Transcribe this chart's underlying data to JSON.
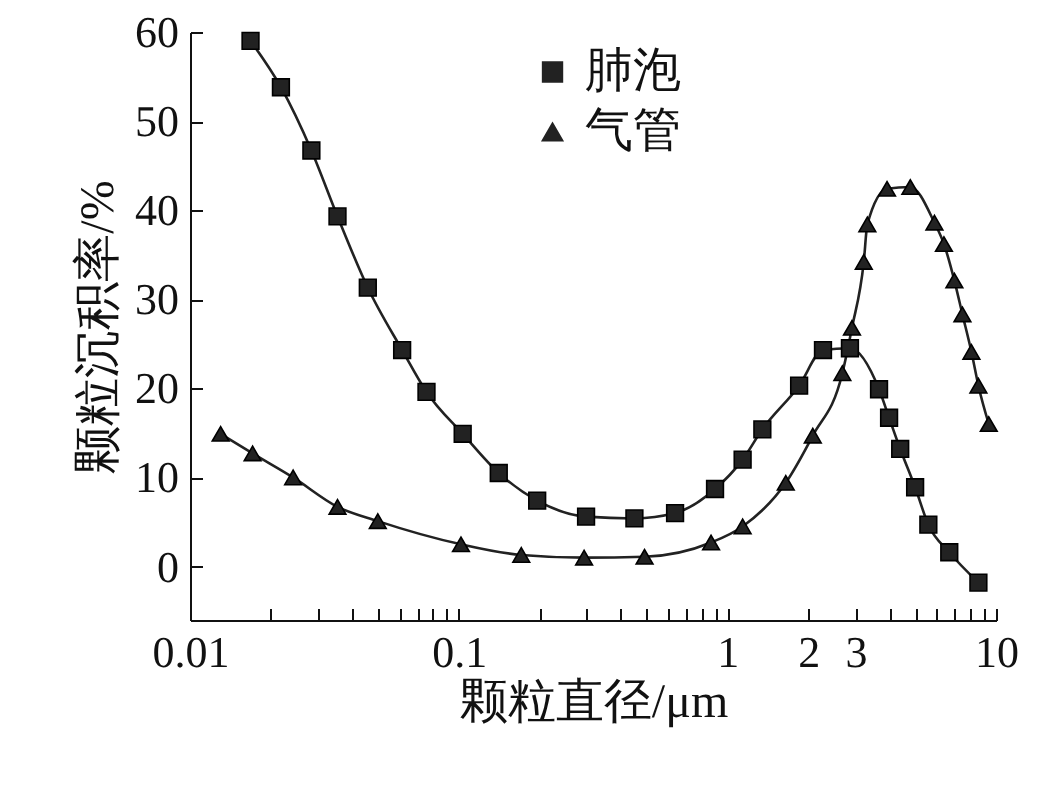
{
  "chart_data": {
    "type": "line",
    "xlabel": "颗粒直径/μm",
    "ylabel": "颗粒沉积率/%",
    "log": "x",
    "xlim": [
      0.01,
      10
    ],
    "ylim": [
      -6,
      60
    ],
    "xticks": [
      {
        "value": 0.01,
        "label": "0.01"
      },
      {
        "value": 0.02,
        "label": null
      },
      {
        "value": 0.03,
        "label": null
      },
      {
        "value": 0.04,
        "label": null
      },
      {
        "value": 0.05,
        "label": null
      },
      {
        "value": 0.06,
        "label": null
      },
      {
        "value": 0.07,
        "label": null
      },
      {
        "value": 0.08,
        "label": null
      },
      {
        "value": 0.09,
        "label": null
      },
      {
        "value": 0.1,
        "label": "0.1"
      },
      {
        "value": 0.2,
        "label": null
      },
      {
        "value": 0.3,
        "label": null
      },
      {
        "value": 0.4,
        "label": null
      },
      {
        "value": 0.5,
        "label": null
      },
      {
        "value": 0.6,
        "label": null
      },
      {
        "value": 0.7,
        "label": null
      },
      {
        "value": 0.8,
        "label": null
      },
      {
        "value": 0.9,
        "label": null
      },
      1,
      2,
      3,
      {
        "value": 4,
        "label": null
      },
      {
        "value": 5,
        "label": null
      },
      {
        "value": 6,
        "label": null
      },
      {
        "value": 7,
        "label": null
      },
      {
        "value": 8,
        "label": null
      },
      {
        "value": 9,
        "label": null
      },
      10
    ],
    "yticks": [
      0,
      10,
      20,
      30,
      40,
      50,
      60
    ],
    "grid": false,
    "legend": "top",
    "line_style": "solid",
    "series": [
      {
        "name": "肺泡",
        "color": "#222222",
        "marker": "square",
        "x": [
          0.0168,
          0.0218,
          0.0283,
          0.0354,
          0.0459,
          0.0616,
          0.0759,
          0.1035,
          0.141,
          0.196,
          0.298,
          0.451,
          0.639,
          0.9,
          1.14,
          1.35,
          1.85,
          2.27,
          2.86,
          3.67,
          4.0,
          4.4,
          5.0,
          5.6,
          6.7,
          8.6
        ],
        "values": [
          59,
          53.8,
          46.7,
          39.3,
          31.3,
          24.3,
          19.6,
          14.9,
          10.5,
          7.4,
          5.6,
          5.4,
          6.0,
          8.7,
          12,
          15.4,
          20.3,
          24.3,
          24.5,
          19.9,
          16.7,
          13.2,
          8.9,
          4.7,
          1.6,
          -1.8
        ]
      },
      {
        "name": "气管",
        "color": "#222222",
        "marker": "triangle",
        "x": [
          0.013,
          0.0171,
          0.0242,
          0.0354,
          0.05,
          0.102,
          0.171,
          0.293,
          0.492,
          0.87,
          1.14,
          1.65,
          2.08,
          2.68,
          2.91,
          3.22,
          3.32,
          3.93,
          4.8,
          5.9,
          6.4,
          7.0,
          7.5,
          8.1,
          8.6,
          9.4
        ],
        "values": [
          14.9,
          12.7,
          10,
          6.7,
          5.1,
          2.5,
          1.3,
          1.0,
          1.1,
          2.7,
          4.5,
          9.4,
          14.7,
          21.7,
          26.8,
          34.2,
          38.4,
          42.4,
          42.6,
          38.6,
          36.2,
          32.1,
          28.3,
          24.1,
          20.3,
          16
        ]
      }
    ]
  }
}
